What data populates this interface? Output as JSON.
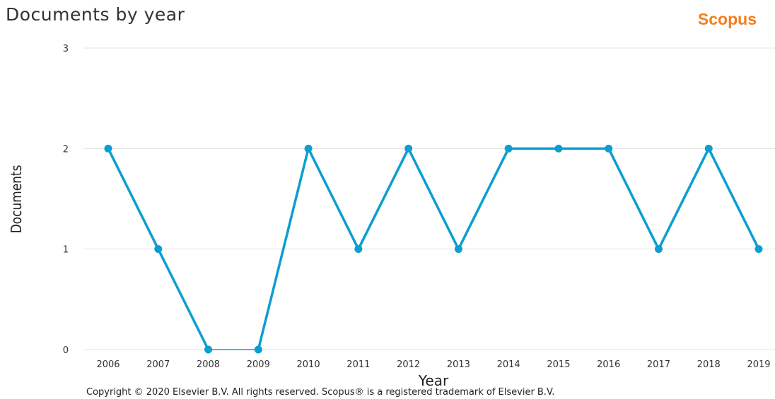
{
  "header": {
    "title": "Documents by year",
    "brand": "Scopus"
  },
  "footer": {
    "copyright": "Copyright © 2020 Elsevier B.V. All rights reserved. Scopus® is a registered trademark of Elsevier B.V."
  },
  "colors": {
    "series": "#0b9ed1",
    "brand": "#f07f1f",
    "grid": "#e3e3e3"
  },
  "chart_data": {
    "type": "line",
    "title": "Documents by year",
    "xlabel": "Year",
    "ylabel": "Documents",
    "x": [
      "2006",
      "2007",
      "2008",
      "2009",
      "2010",
      "2011",
      "2012",
      "2013",
      "2014",
      "2015",
      "2016",
      "2017",
      "2018",
      "2019"
    ],
    "series": [
      {
        "values": [
          2,
          1,
          0,
          0,
          2,
          1,
          2,
          1,
          2,
          2,
          2,
          1,
          2,
          1
        ]
      }
    ],
    "ylim": [
      0,
      3
    ],
    "yticks": [
      "0",
      "1",
      "2",
      "3"
    ],
    "grid": "horizontal",
    "legend": "none"
  }
}
